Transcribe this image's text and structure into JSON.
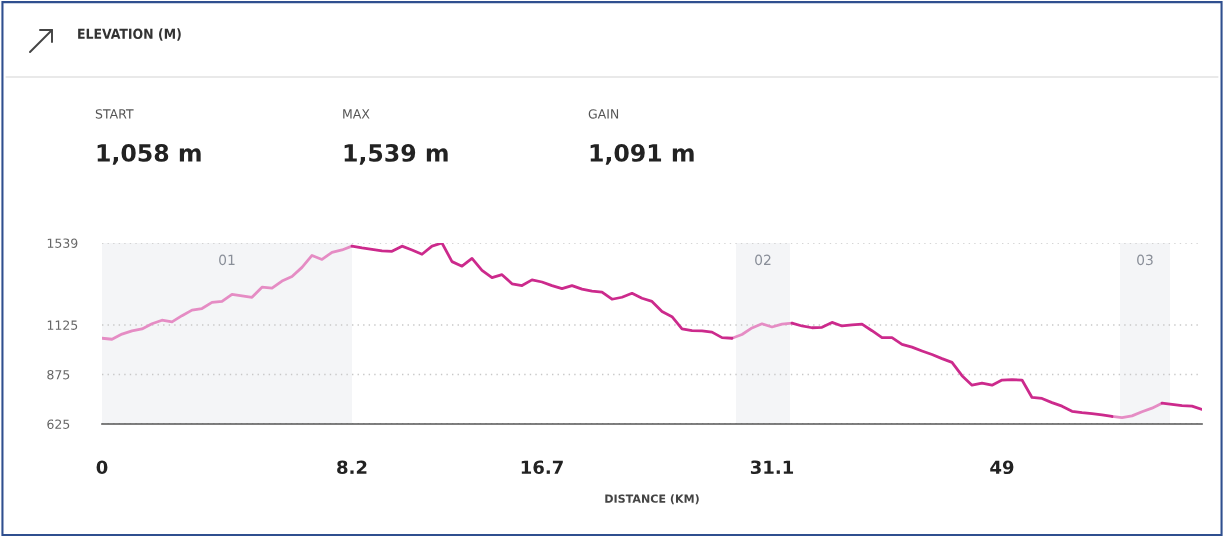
{
  "chart_data": {
    "type": "line",
    "title": "ELEVATION (M)",
    "xlabel": "DISTANCE (KM)",
    "annotations": [
      "START",
      "1,058 m",
      "MAX",
      "1,539 m",
      "GAIN",
      "1,091 m",
      "02",
      "03"
    ],
    "categories": [
      "0",
      null,
      null,
      null,
      null,
      null,
      null,
      null,
      null,
      null,
      null,
      null,
      null,
      null,
      null,
      null,
      null,
      null,
      null,
      null,
      null,
      null,
      null,
      null,
      null,
      "8.2",
      null,
      null,
      null,
      null,
      null,
      null,
      null,
      null,
      null,
      null,
      null,
      null,
      null,
      null,
      null,
      null,
      null,
      null,
      "16.7",
      null,
      null,
      null,
      null,
      null,
      null,
      null,
      null,
      null,
      null,
      null,
      null,
      null,
      null,
      null,
      null,
      null,
      null,
      null,
      null,
      null,
      null,
      "31.1",
      null,
      null,
      null,
      null,
      null,
      null,
      null,
      null,
      null,
      null,
      null,
      null,
      null,
      null,
      null,
      null,
      null,
      null,
      null,
      null,
      null,
      null,
      "49",
      null,
      null,
      null,
      null,
      null,
      null,
      null,
      null,
      null,
      null,
      null,
      null,
      null,
      null,
      null,
      null,
      null,
      null,
      null,
      null
    ],
    "series": [
      {
        "color": "#e58cc4",
        "values": [
          1058,
          1053,
          1079,
          1095,
          1105,
          1131,
          1149,
          1141,
          1172,
          1200,
          1208,
          1239,
          1244,
          1280,
          1272,
          1265,
          1316,
          1311,
          1347,
          1370,
          1416,
          1476,
          1456,
          1492,
          1504,
          1523,
          null,
          null,
          null,
          null,
          null,
          null,
          null,
          null,
          null,
          null,
          null,
          null,
          null,
          null,
          null,
          null,
          null,
          null,
          null,
          null,
          null,
          null,
          null,
          null,
          null,
          null,
          null,
          null,
          null,
          null,
          null,
          null,
          null,
          null,
          null,
          null,
          null,
          1058,
          1077,
          1110,
          1131,
          1115,
          1129,
          1134,
          null,
          null,
          null,
          null,
          null,
          null,
          null,
          null,
          null,
          null,
          null,
          null,
          null,
          null,
          null,
          null,
          null,
          null,
          null,
          null,
          null,
          null,
          null,
          null,
          null,
          null,
          null,
          null,
          null,
          null,
          null,
          663,
          657,
          666,
          687,
          705,
          730,
          null,
          null,
          null,
          null
        ]
      },
      {
        "color": "#cc2a8c",
        "values": [
          null,
          null,
          null,
          null,
          null,
          null,
          null,
          null,
          null,
          null,
          null,
          null,
          null,
          null,
          null,
          null,
          null,
          null,
          null,
          null,
          null,
          null,
          null,
          null,
          null,
          1523,
          1514,
          1507,
          1499,
          1497,
          1523,
          1504,
          1482,
          1523,
          1539,
          1445,
          1422,
          1461,
          1401,
          1364,
          1379,
          1333,
          1324,
          1353,
          1342,
          1324,
          1309,
          1324,
          1306,
          1296,
          1291,
          1255,
          1265,
          1285,
          1260,
          1244,
          1193,
          1167,
          1105,
          1096,
          1095,
          1089,
          1061,
          1058,
          null,
          null,
          null,
          null,
          null,
          1134,
          1120,
          1111,
          1113,
          1138,
          1120,
          1125,
          1129,
          1096,
          1061,
          1061,
          1027,
          1013,
          994,
          976,
          955,
          936,
          869,
          821,
          831,
          821,
          847,
          849,
          847,
          759,
          754,
          733,
          715,
          689,
          682,
          677,
          671,
          663,
          null,
          null,
          null,
          null,
          730,
          724,
          718,
          715,
          699
        ]
      }
    ],
    "bands": [
      {
        "axis": "x",
        "from": "0",
        "to": "8.2",
        "label": "01",
        "color": "#f4f5f7"
      }
    ],
    "ylim": [
      625,
      1539
    ],
    "yticks": [
      625,
      875,
      1125,
      1539
    ],
    "grid": "y",
    "line_style": "solid",
    "marker": "none"
  }
}
